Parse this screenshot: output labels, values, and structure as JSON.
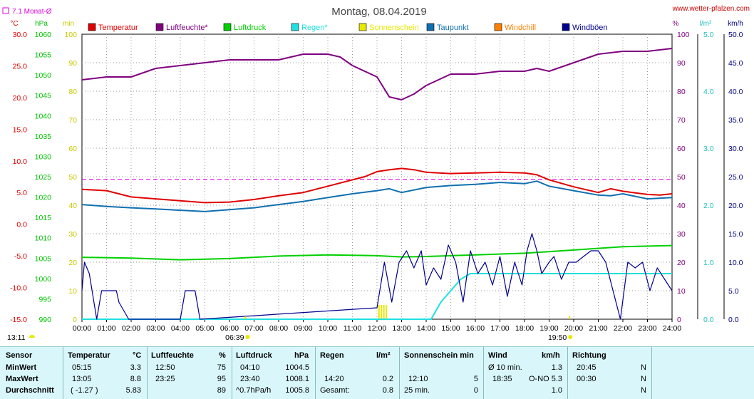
{
  "chart_data": {
    "type": "line",
    "title": "Montag, 08.04.2019",
    "source": "www.wetter-pfalzen.com",
    "month_avg_label": "7.1 Monat-Ø",
    "month_avg_temp": 7.1,
    "x_ticks": [
      "00:00",
      "01:00",
      "02:00",
      "03:00",
      "04:00",
      "05:00",
      "06:00",
      "07:00",
      "08:00",
      "09:00",
      "10:00",
      "11:00",
      "12:00",
      "13:00",
      "14:00",
      "15:00",
      "16:00",
      "17:00",
      "18:00",
      "19:00",
      "20:00",
      "21:00",
      "22:00",
      "23:00",
      "24:00"
    ],
    "sunrise": "06:39",
    "sunset": "19:50",
    "moonrise": "13:11",
    "axes": {
      "temp": {
        "unit": "°C",
        "min": -15,
        "max": 30,
        "ticks": [
          "30.0",
          "25.0",
          "20.0",
          "15.0",
          "10.0",
          "5.0",
          "0.0",
          "-5.0",
          "-10.0",
          "-15.0"
        ]
      },
      "pressure": {
        "unit": "hPa",
        "min": 990,
        "max": 1060,
        "ticks": [
          "1060",
          "1055",
          "1050",
          "1045",
          "1040",
          "1035",
          "1030",
          "1025",
          "1020",
          "1015",
          "1010",
          "1005",
          "1000",
          "995",
          "990"
        ]
      },
      "sun_min": {
        "unit": "min",
        "ticks": [
          "100",
          "90",
          "80",
          "70",
          "60",
          "50",
          "40",
          "30",
          "20",
          "10",
          "0"
        ]
      },
      "humidity": {
        "unit": "%",
        "min": 0,
        "max": 100,
        "ticks": [
          "100",
          "90",
          "80",
          "70",
          "60",
          "50",
          "40",
          "30",
          "20",
          "10",
          "0"
        ]
      },
      "rain": {
        "unit": "l/m²",
        "min": 0,
        "max": 5,
        "ticks": [
          "5.0",
          "4.0",
          "3.0",
          "2.0",
          "1.0",
          "0.0"
        ]
      },
      "wind": {
        "unit": "km/h",
        "min": 0,
        "max": 50,
        "ticks": [
          "50.0",
          "45.0",
          "40.0",
          "35.0",
          "30.0",
          "25.0",
          "20.0",
          "15.0",
          "10.0",
          "5.0",
          "0.0"
        ]
      }
    },
    "legend": [
      {
        "name": "Temperatur",
        "color": "#e00000"
      },
      {
        "name": "Luftfeuchte*",
        "color": "#800080"
      },
      {
        "name": "Luftdruck",
        "color": "#00d000"
      },
      {
        "name": "Regen*",
        "color": "#20e0e0"
      },
      {
        "name": "Sonnenschein",
        "color": "#e8e800"
      },
      {
        "name": "Taupunkt",
        "color": "#1070b0"
      },
      {
        "name": "Windchill",
        "color": "#ff8000"
      },
      {
        "name": "Windböen",
        "color": "#000090"
      }
    ],
    "series": [
      {
        "name": "Temperatur",
        "axis": "temp",
        "color": "#e00000",
        "x": [
          0,
          1,
          2,
          3,
          4,
          5,
          6,
          7,
          8,
          9,
          10,
          11,
          11.5,
          12,
          12.5,
          13,
          13.5,
          14,
          15,
          16,
          17,
          18,
          18.5,
          19,
          20,
          21,
          21.5,
          22,
          23,
          23.5,
          24
        ],
        "y": [
          5.5,
          5.3,
          4.3,
          4.0,
          3.7,
          3.4,
          3.5,
          3.9,
          4.5,
          5.0,
          6.0,
          7.0,
          7.5,
          8.3,
          8.6,
          8.8,
          8.6,
          8.2,
          8.0,
          8.1,
          8.2,
          8.1,
          7.8,
          7.0,
          5.9,
          5.0,
          5.6,
          5.2,
          4.7,
          4.6,
          4.8
        ]
      },
      {
        "name": "Taupunkt",
        "axis": "temp",
        "color": "#1070b0",
        "x": [
          0,
          1,
          2,
          3,
          4,
          5,
          6,
          7,
          8,
          9,
          10,
          11,
          12,
          12.5,
          13,
          14,
          15,
          16,
          17,
          18,
          18.5,
          19,
          20,
          21,
          21.5,
          22,
          23,
          24
        ],
        "y": [
          3.1,
          2.8,
          2.6,
          2.4,
          2.2,
          2.0,
          2.3,
          2.6,
          3.1,
          3.6,
          4.2,
          4.8,
          5.3,
          5.6,
          5.0,
          5.8,
          6.1,
          6.3,
          6.6,
          6.4,
          6.8,
          6.0,
          5.3,
          4.6,
          4.5,
          4.8,
          4.0,
          4.2
        ]
      },
      {
        "name": "Luftfeuchte*",
        "axis": "humidity",
        "color": "#800080",
        "x": [
          0,
          1,
          2,
          3,
          4,
          5,
          6,
          7,
          8,
          9,
          9.5,
          10,
          10.5,
          11,
          12,
          12.5,
          13,
          13.5,
          14,
          15,
          16,
          17,
          18,
          18.5,
          19,
          20,
          21,
          22,
          23,
          24
        ],
        "y": [
          84,
          85,
          85,
          88,
          89,
          90,
          91,
          91,
          91,
          93,
          93,
          93,
          92,
          89,
          85,
          78,
          77,
          79,
          82,
          86,
          86,
          87,
          87,
          88,
          87,
          90,
          93,
          94,
          94,
          95
        ]
      },
      {
        "name": "Luftdruck",
        "axis": "pressure",
        "color": "#00d000",
        "x": [
          0,
          2,
          4,
          6,
          8,
          10,
          12,
          13,
          14,
          16,
          18,
          20,
          22,
          24
        ],
        "y": [
          1005.2,
          1005.0,
          1004.6,
          1004.9,
          1005.5,
          1005.8,
          1005.6,
          1005.3,
          1005.4,
          1005.8,
          1006.2,
          1007.0,
          1007.8,
          1008.1
        ]
      },
      {
        "name": "Regen*",
        "axis": "rain",
        "color": "#20e0e0",
        "x": [
          0,
          14.2,
          14.6,
          15,
          15.4,
          15.8,
          16,
          16.5,
          17,
          24
        ],
        "y": [
          0,
          0,
          0.3,
          0.5,
          0.7,
          0.8,
          0.8,
          0.8,
          0.8,
          0.8
        ]
      },
      {
        "name": "Windböen",
        "axis": "wind",
        "color": "#000090",
        "x": [
          0,
          0.1,
          0.3,
          0.6,
          0.8,
          1,
          1.4,
          1.5,
          1.9,
          2,
          4,
          4.2,
          4.6,
          4.8,
          12,
          12.3,
          12.6,
          12.9,
          13.2,
          13.5,
          13.8,
          14,
          14.3,
          14.6,
          14.9,
          15.2,
          15.5,
          15.8,
          16.1,
          16.4,
          16.7,
          17,
          17.3,
          17.6,
          17.9,
          18.1,
          18.3,
          18.5,
          18.7,
          19,
          19.2,
          19.5,
          19.8,
          20.1,
          20.4,
          20.7,
          21,
          21.3,
          21.6,
          21.9,
          22.2,
          22.5,
          22.8,
          23.1,
          23.4,
          23.7,
          24
        ],
        "y": [
          5,
          10,
          8,
          0,
          5,
          5,
          5,
          3,
          0,
          0,
          0,
          5,
          5,
          0,
          2,
          10,
          3,
          10,
          12,
          9,
          12,
          6,
          9,
          7,
          13,
          10,
          3,
          12,
          8,
          10,
          6,
          11,
          4,
          10,
          6,
          12,
          15,
          12,
          8,
          10,
          11,
          7,
          10,
          10,
          11,
          12,
          12,
          10,
          5,
          0,
          10,
          9,
          10,
          5,
          9,
          7,
          5
        ]
      }
    ]
  },
  "stats": {
    "header": {
      "sensor": "Sensor",
      "temp": "Temperatur",
      "temp_unit": "°C",
      "hum": "Luftfeuchte",
      "hum_unit": "%",
      "press": "Luftdruck",
      "press_unit": "hPa",
      "rain": "Regen",
      "rain_unit": "l/m²",
      "sun": "Sonnenschein min",
      "wind": "Wind",
      "wind_unit": "km/h",
      "dir": "Richtung"
    },
    "min": {
      "label": "MinWert",
      "temp_time": "05:15",
      "temp_val": "3.3",
      "hum_time": "12:50",
      "hum_val": "75",
      "press_time": "04:10",
      "press_val": "1004.5",
      "rain_time": "",
      "rain_val": "",
      "sun_time": "",
      "sun_val": "",
      "wind_time": "Ø 10 min.",
      "wind_val": "1.3",
      "dir_time": "20:45",
      "dir_val": "N"
    },
    "max": {
      "label": "MaxWert",
      "temp_time": "13:05",
      "temp_val": "8.8",
      "hum_time": "23:25",
      "hum_val": "95",
      "press_time": "23:40",
      "press_val": "1008.1",
      "rain_time": "14:20",
      "rain_val": "0.2",
      "sun_time": "12:10",
      "sun_val": "5",
      "wind_time": "18:35",
      "wind_dir": "O-NO",
      "wind_val": "5.3",
      "dir_time": "00:30",
      "dir_val": "N"
    },
    "avg": {
      "label": "Durchschnitt",
      "temp_time": "( -1.27 )",
      "temp_val": "5.83",
      "hum_time": "",
      "hum_val": "89",
      "press_time": "^0.7hPa/h",
      "press_val": "1005.8",
      "rain_time": "Gesamt:",
      "rain_val": "0.8",
      "sun_time": "25 min.",
      "sun_val": "0",
      "wind_time": "",
      "wind_val": "1.0",
      "dir_time": "",
      "dir_val": "N"
    }
  }
}
